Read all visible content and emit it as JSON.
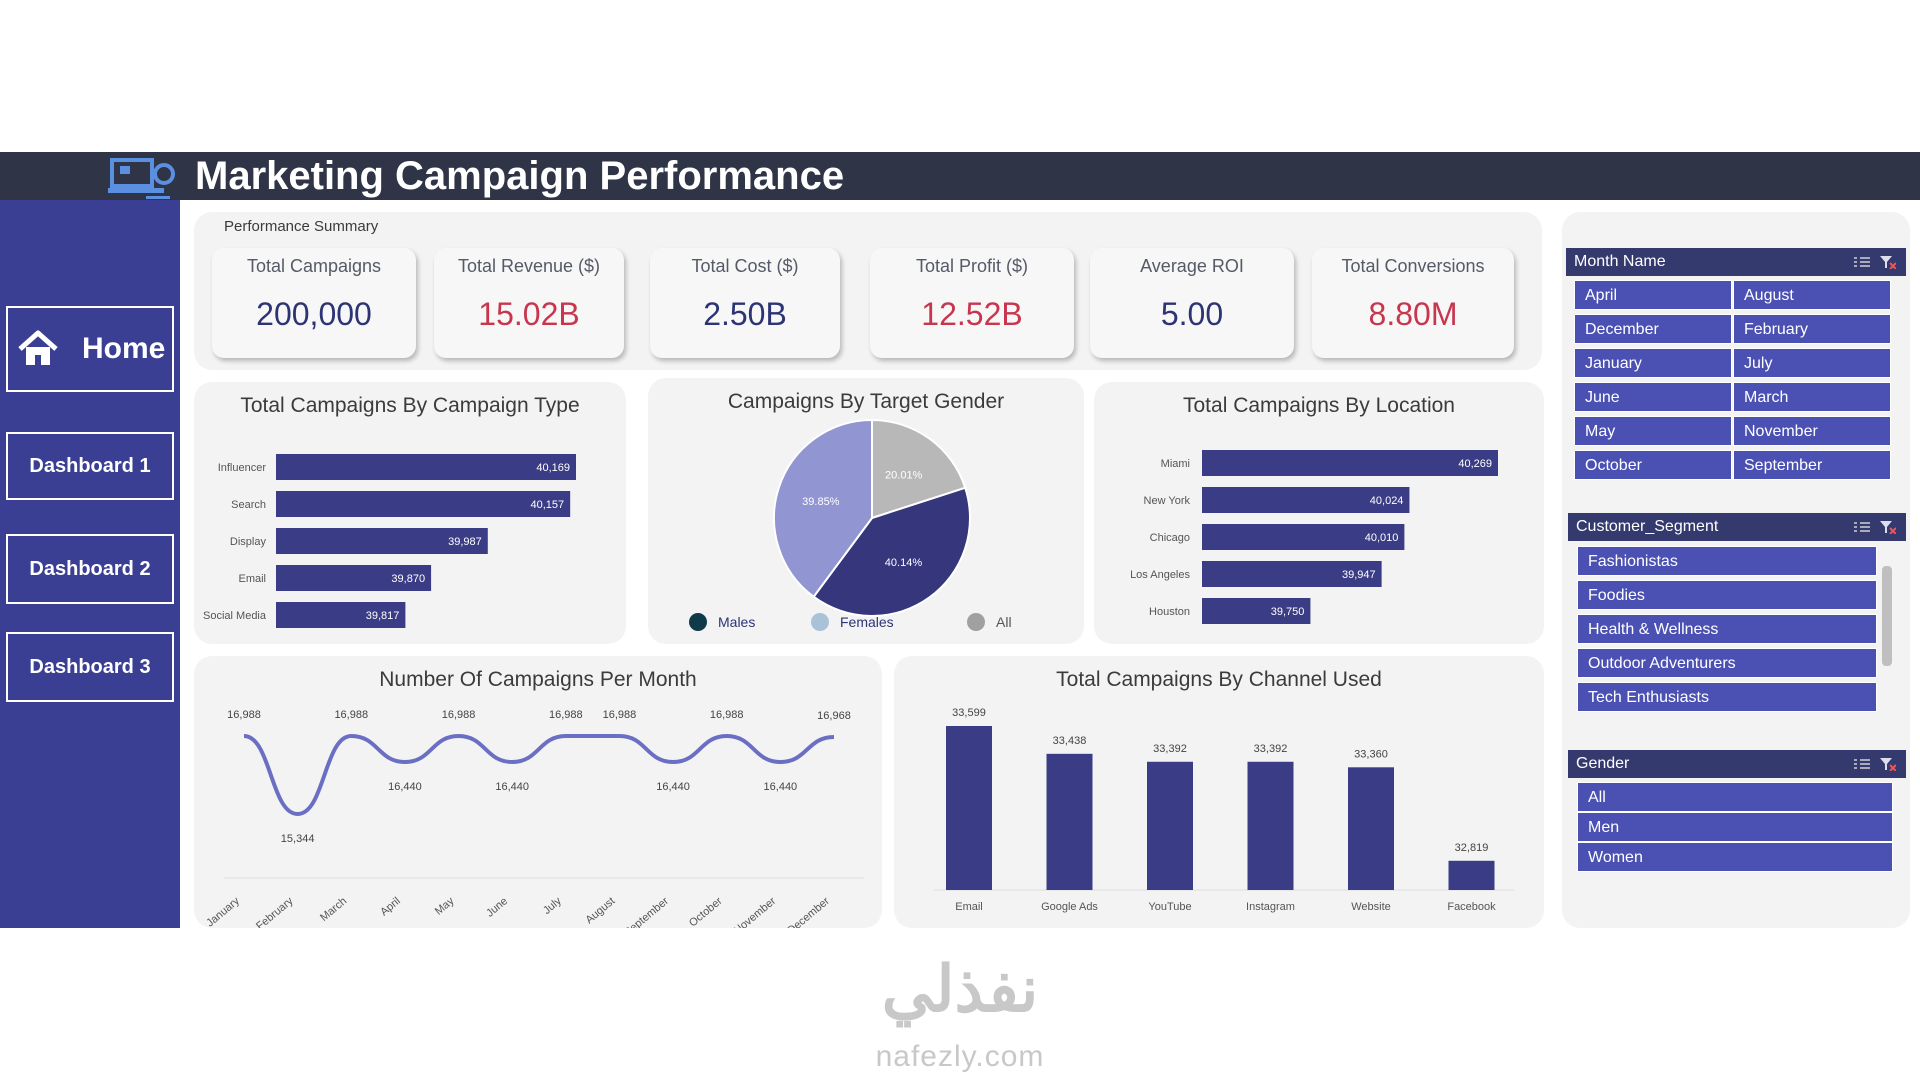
{
  "header": {
    "title": "Marketing Campaign Performance",
    "logo_icon": "dashboard-laptop-icon"
  },
  "nav": {
    "home": "Home",
    "dashboard1": "Dashboard 1",
    "dashboard2": "Dashboard 2",
    "dashboard3": "Dashboard 3",
    "home_icon": "home-icon"
  },
  "summary": {
    "title": "Performance Summary",
    "cards": [
      {
        "label": "Total Campaigns",
        "value": "200,000"
      },
      {
        "label": "Total Revenue ($)",
        "value": "15.02B"
      },
      {
        "label": "Total Cost ($)",
        "value": "2.50B"
      },
      {
        "label": "Total Profit ($)",
        "value": "12.52B"
      },
      {
        "label": "Average ROI",
        "value": "5.00"
      },
      {
        "label": "Total Conversions",
        "value": "8.80M"
      }
    ]
  },
  "colors": {
    "bar": "#3a3d85",
    "bar_light": "#5b5fc7",
    "line": "#6b6fc4",
    "pie_males": "#35367c",
    "pie_females": "#9195d1",
    "pie_all": "#b8b8b8",
    "accent_red": "#c8364e",
    "text_blue": "#2d3474",
    "slicer_head": "#34396e",
    "slicer_item": "#4b50b3"
  },
  "chart_data": [
    {
      "type": "bar",
      "orientation": "horizontal",
      "title": "Total Campaigns By Campaign Type",
      "categories": [
        "Influencer",
        "Search",
        "Display",
        "Email",
        "Social Media"
      ],
      "values": [
        40169,
        40157,
        39987,
        39870,
        39817
      ],
      "labels": [
        "40,169",
        "40,157",
        "39,987",
        "39,870",
        "39,817"
      ]
    },
    {
      "type": "pie",
      "title": "Campaigns By Target Gender",
      "categories": [
        "Males",
        "Females",
        "All"
      ],
      "values": [
        40.14,
        39.85,
        20.01
      ],
      "labels": [
        "40.14%",
        "39.85%",
        "20.01%"
      ],
      "legend_position": "bottom"
    },
    {
      "type": "bar",
      "orientation": "horizontal",
      "title": "Total Campaigns By Location",
      "categories": [
        "Miami",
        "New York",
        "Chicago",
        "Los Angeles",
        "Houston"
      ],
      "values": [
        40269,
        40024,
        40010,
        39947,
        39750
      ],
      "labels": [
        "40,269",
        "40,024",
        "40,010",
        "39,947",
        "39,750"
      ]
    },
    {
      "type": "line",
      "title": "Number Of Campaigns Per Month",
      "categories": [
        "January",
        "February",
        "March",
        "April",
        "May",
        "June",
        "July",
        "August",
        "September",
        "October",
        "November",
        "December"
      ],
      "values": [
        16988,
        15344,
        16988,
        16440,
        16988,
        16440,
        16988,
        16988,
        16440,
        16988,
        16440,
        16968
      ],
      "labels": [
        "16,988",
        "15,344",
        "16,988",
        "16,440",
        "16,988",
        "16,440",
        "16,988",
        "16,988",
        "16,440",
        "16,988",
        "16,440",
        "16,968"
      ]
    },
    {
      "type": "bar",
      "orientation": "vertical",
      "title": "Total Campaigns By Channel Used",
      "categories": [
        "Email",
        "Google Ads",
        "YouTube",
        "Instagram",
        "Website",
        "Facebook"
      ],
      "values": [
        33599,
        33438,
        33392,
        33392,
        33360,
        32819
      ],
      "labels": [
        "33,599",
        "33,438",
        "33,392",
        "33,392",
        "33,360",
        "32,819"
      ]
    }
  ],
  "slicers": {
    "month": {
      "title": "Month Name",
      "items": [
        "April",
        "August",
        "December",
        "February",
        "January",
        "July",
        "June",
        "March",
        "May",
        "November",
        "October",
        "September"
      ]
    },
    "segment": {
      "title": "Customer_Segment",
      "items": [
        "Fashionistas",
        "Foodies",
        "Health & Wellness",
        "Outdoor Adventurers",
        "Tech Enthusiasts"
      ]
    },
    "gender": {
      "title": "Gender",
      "items": [
        "All",
        "Men",
        "Women"
      ]
    }
  },
  "watermark": {
    "arabic": "نفذلي",
    "latin": "nafezly.com"
  }
}
